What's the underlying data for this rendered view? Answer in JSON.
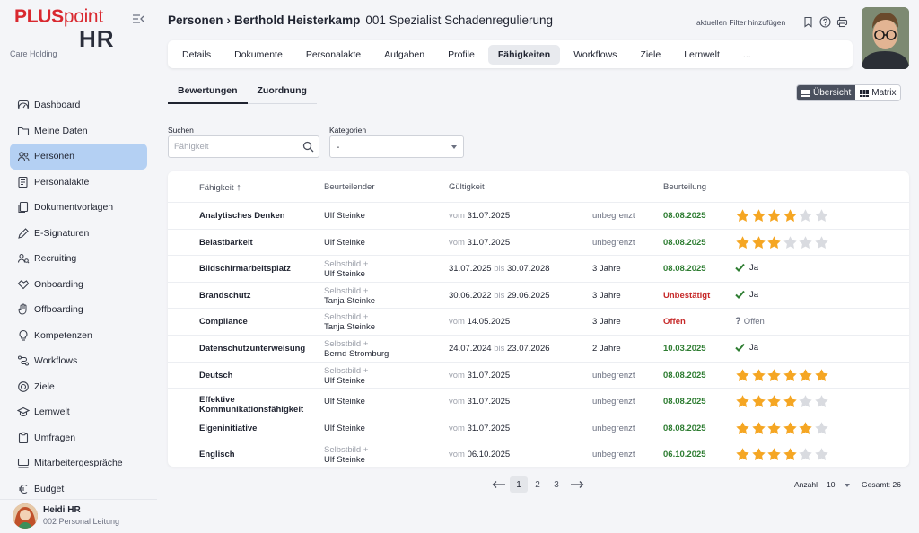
{
  "sidebar": {
    "logo_top": "PLUSpoint",
    "logo_bottom": "HR",
    "company": "Care Holding",
    "items": [
      {
        "label": "Dashboard",
        "icon": "gauge-icon"
      },
      {
        "label": "Meine Daten",
        "icon": "folder-icon"
      },
      {
        "label": "Personen",
        "icon": "people-icon",
        "active": true
      },
      {
        "label": "Personalakte",
        "icon": "file-list-icon"
      },
      {
        "label": "Dokumentvorlagen",
        "icon": "documents-icon"
      },
      {
        "label": "E-Signaturen",
        "icon": "pen-icon"
      },
      {
        "label": "Recruiting",
        "icon": "recruiting-icon"
      },
      {
        "label": "Onboarding",
        "icon": "handshake-icon"
      },
      {
        "label": "Offboarding",
        "icon": "hand-icon"
      },
      {
        "label": "Kompetenzen",
        "icon": "bulb-icon"
      },
      {
        "label": "Workflows",
        "icon": "workflow-icon"
      },
      {
        "label": "Ziele",
        "icon": "target-icon"
      },
      {
        "label": "Lernwelt",
        "icon": "graduation-icon"
      },
      {
        "label": "Umfragen",
        "icon": "clipboard-icon"
      },
      {
        "label": "Mitarbeitergespräche",
        "icon": "meeting-icon"
      },
      {
        "label": "Budget",
        "icon": "euro-icon"
      }
    ],
    "user": {
      "name": "Heidi HR",
      "role": "002 Personal Leitung"
    }
  },
  "header": {
    "breadcrumb_parent": "Personen",
    "breadcrumb_sep": "›",
    "person": "Berthold Heisterkamp",
    "subtitle": "001 Spezialist Schadenregulierung",
    "filter_link": "aktuellen Filter hinzufügen"
  },
  "tabs": [
    "Details",
    "Dokumente",
    "Personalakte",
    "Aufgaben",
    "Profile",
    "Fähigkeiten",
    "Workflows",
    "Ziele",
    "Lernwelt",
    "..."
  ],
  "active_tab": "Fähigkeiten",
  "subtabs": {
    "active": "Bewertungen",
    "other": "Zuordnung"
  },
  "view_toggle": {
    "overview": "Übersicht",
    "matrix": "Matrix"
  },
  "filters": {
    "search_label": "Suchen",
    "search_placeholder": "Fähigkeit",
    "category_label": "Kategorien",
    "category_value": "-"
  },
  "table": {
    "headers": {
      "skill": "Fähigkeit",
      "sort_arrow": "↑",
      "evaluator": "Beurteilender",
      "validity": "Gültigkeit",
      "rating": "Beurteilung"
    },
    "rows": [
      {
        "skill": "Analytisches Denken",
        "self": "",
        "evaluator": "Ulf Steinke",
        "from_label": "vom",
        "from": "31.07.2025",
        "to_label": "",
        "to": "",
        "duration": "unbegrenzt",
        "date": "08.08.2025",
        "status": "green",
        "stars": 4
      },
      {
        "skill": "Belastbarkeit",
        "self": "",
        "evaluator": "Ulf Steinke",
        "from_label": "vom",
        "from": "31.07.2025",
        "to_label": "",
        "to": "",
        "duration": "unbegrenzt",
        "date": "08.08.2025",
        "status": "green",
        "stars": 3
      },
      {
        "skill": "Bildschirmarbeitsplatz",
        "self": "Selbstbild +",
        "evaluator": "Ulf Steinke",
        "from_label": "",
        "from": "31.07.2025",
        "to_label": "bis",
        "to": "30.07.2028",
        "duration": "3 Jahre",
        "date": "08.08.2025",
        "status": "green",
        "result": "Ja"
      },
      {
        "skill": "Brandschutz",
        "self": "Selbstbild +",
        "evaluator": "Tanja Steinke",
        "from_label": "",
        "from": "30.06.2022",
        "to_label": "bis",
        "to": "29.06.2025",
        "duration": "3 Jahre",
        "date": "Unbestätigt",
        "status": "red",
        "result": "Ja"
      },
      {
        "skill": "Compliance",
        "self": "Selbstbild +",
        "evaluator": "Tanja Steinke",
        "from_label": "vom",
        "from": "14.05.2025",
        "to_label": "",
        "to": "",
        "duration": "3 Jahre",
        "date": "Offen",
        "status": "red",
        "result": "Offen"
      },
      {
        "skill": "Datenschutzunterweisung",
        "self": "Selbstbild +",
        "evaluator": "Bernd Stromburg",
        "from_label": "",
        "from": "24.07.2024",
        "to_label": "bis",
        "to": "23.07.2026",
        "duration": "2 Jahre",
        "date": "10.03.2025",
        "status": "green",
        "result": "Ja"
      },
      {
        "skill": "Deutsch",
        "self": "Selbstbild +",
        "evaluator": "Ulf Steinke",
        "from_label": "vom",
        "from": "31.07.2025",
        "to_label": "",
        "to": "",
        "duration": "unbegrenzt",
        "date": "08.08.2025",
        "status": "green",
        "stars": 6
      },
      {
        "skill": "Effektive Kommunikationsfähigkeit",
        "self": "",
        "evaluator": "Ulf Steinke",
        "from_label": "vom",
        "from": "31.07.2025",
        "to_label": "",
        "to": "",
        "duration": "unbegrenzt",
        "date": "08.08.2025",
        "status": "green",
        "stars": 4
      },
      {
        "skill": "Eigeninitiative",
        "self": "",
        "evaluator": "Ulf Steinke",
        "from_label": "vom",
        "from": "31.07.2025",
        "to_label": "",
        "to": "",
        "duration": "unbegrenzt",
        "date": "08.08.2025",
        "status": "green",
        "stars": 5
      },
      {
        "skill": "Englisch",
        "self": "Selbstbild +",
        "evaluator": "Ulf Steinke",
        "from_label": "vom",
        "from": "06.10.2025",
        "to_label": "",
        "to": "",
        "duration": "unbegrenzt",
        "date": "06.10.2025",
        "status": "green",
        "stars": 4
      }
    ]
  },
  "pagination": {
    "pages": [
      "1",
      "2",
      "3"
    ],
    "active": "1",
    "prev": "⟵",
    "next": "⟶"
  },
  "footer": {
    "count_label": "Anzahl",
    "count_value": "10",
    "total": "Gesamt: 26"
  },
  "colors": {
    "accent": "#b4d0f3",
    "star": "#f5a623",
    "star_empty": "#d9dbe0",
    "green": "#2e7d32",
    "red": "#c62828",
    "brand": "#d9282f"
  }
}
